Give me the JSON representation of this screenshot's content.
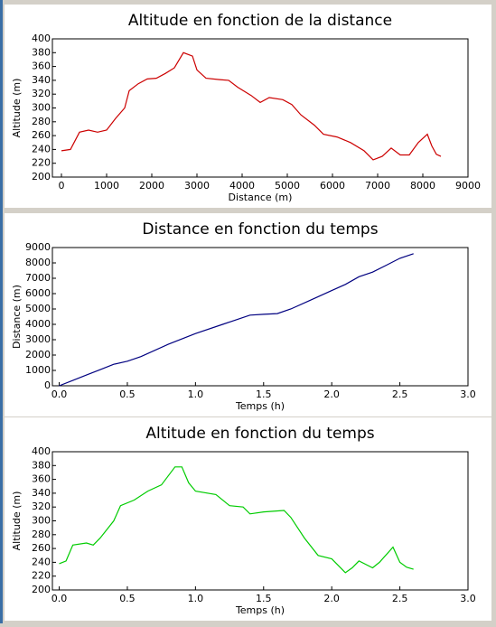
{
  "chart_data": [
    {
      "type": "line",
      "title": "Altitude en fonction de la distance",
      "xlabel": "Distance (m)",
      "ylabel": "Altitude (m)",
      "color": "#cc0000",
      "x": [
        0,
        200,
        400,
        600,
        800,
        1000,
        1200,
        1400,
        1500,
        1700,
        1900,
        2100,
        2300,
        2500,
        2700,
        2900,
        3000,
        3200,
        3500,
        3700,
        3900,
        4200,
        4400,
        4600,
        4900,
        5100,
        5300,
        5600,
        5800,
        6100,
        6400,
        6700,
        6900,
        7100,
        7300,
        7500,
        7700,
        7900,
        8100,
        8200,
        8300,
        8400
      ],
      "values": [
        238,
        240,
        265,
        268,
        265,
        268,
        285,
        300,
        325,
        335,
        342,
        343,
        350,
        358,
        380,
        375,
        355,
        343,
        341,
        340,
        330,
        318,
        308,
        315,
        312,
        305,
        290,
        275,
        262,
        258,
        250,
        238,
        225,
        230,
        242,
        232,
        232,
        250,
        262,
        245,
        233,
        230
      ],
      "xlim": [
        -200,
        9000
      ],
      "xticks": [
        0,
        1000,
        2000,
        3000,
        4000,
        5000,
        6000,
        7000,
        8000,
        9000
      ],
      "ylim": [
        200,
        400
      ],
      "yticks": [
        200,
        220,
        240,
        260,
        280,
        300,
        320,
        340,
        360,
        380,
        400
      ]
    },
    {
      "type": "line",
      "title": "Distance en fonction du temps",
      "xlabel": "Temps (h)",
      "ylabel": "Distance (m)",
      "color": "#000080",
      "x": [
        0,
        0.1,
        0.2,
        0.3,
        0.4,
        0.5,
        0.6,
        0.8,
        1.0,
        1.2,
        1.4,
        1.5,
        1.6,
        1.7,
        1.85,
        2.0,
        2.1,
        2.2,
        2.3,
        2.4,
        2.5,
        2.6
      ],
      "values": [
        0,
        350,
        700,
        1050,
        1400,
        1600,
        1900,
        2700,
        3400,
        4000,
        4600,
        4650,
        4700,
        5000,
        5600,
        6200,
        6600,
        7100,
        7400,
        7850,
        8300,
        8600
      ],
      "xlim": [
        -0.05,
        3.0
      ],
      "xticks": [
        {
          "value": 0,
          "label": "0.0"
        },
        {
          "value": 0.5,
          "label": "0.5"
        },
        {
          "value": 1,
          "label": "1.0"
        },
        {
          "value": 1.5,
          "label": "1.5"
        },
        {
          "value": 2,
          "label": "2.0"
        },
        {
          "value": 2.5,
          "label": "2.5"
        },
        {
          "value": 3,
          "label": "3.0"
        }
      ],
      "ylim": [
        0,
        9000
      ],
      "yticks": [
        0,
        1000,
        2000,
        3000,
        4000,
        5000,
        6000,
        7000,
        8000,
        9000
      ]
    },
    {
      "type": "line",
      "title": "Altitude en fonction du temps",
      "xlabel": "Temps (h)",
      "ylabel": "Altitude (m)",
      "color": "#00cc00",
      "x": [
        0,
        0.05,
        0.1,
        0.2,
        0.25,
        0.3,
        0.4,
        0.45,
        0.55,
        0.65,
        0.75,
        0.85,
        0.9,
        0.95,
        1.0,
        1.15,
        1.25,
        1.35,
        1.4,
        1.5,
        1.65,
        1.7,
        1.8,
        1.9,
        2.0,
        2.1,
        2.15,
        2.2,
        2.3,
        2.35,
        2.45,
        2.5,
        2.55,
        2.6
      ],
      "values": [
        238,
        242,
        265,
        268,
        265,
        275,
        300,
        322,
        330,
        343,
        352,
        378,
        378,
        355,
        343,
        338,
        322,
        320,
        310,
        313,
        315,
        305,
        275,
        250,
        245,
        225,
        232,
        242,
        232,
        240,
        262,
        240,
        233,
        230
      ],
      "xlim": [
        -0.05,
        3.0
      ],
      "xticks": [
        {
          "value": 0,
          "label": "0.0"
        },
        {
          "value": 0.5,
          "label": "0.5"
        },
        {
          "value": 1,
          "label": "1.0"
        },
        {
          "value": 1.5,
          "label": "1.5"
        },
        {
          "value": 2,
          "label": "2.0"
        },
        {
          "value": 2.5,
          "label": "2.5"
        },
        {
          "value": 3,
          "label": "3.0"
        }
      ],
      "ylim": [
        200,
        400
      ],
      "yticks": [
        200,
        220,
        240,
        260,
        280,
        300,
        320,
        340,
        360,
        380,
        400
      ]
    }
  ]
}
